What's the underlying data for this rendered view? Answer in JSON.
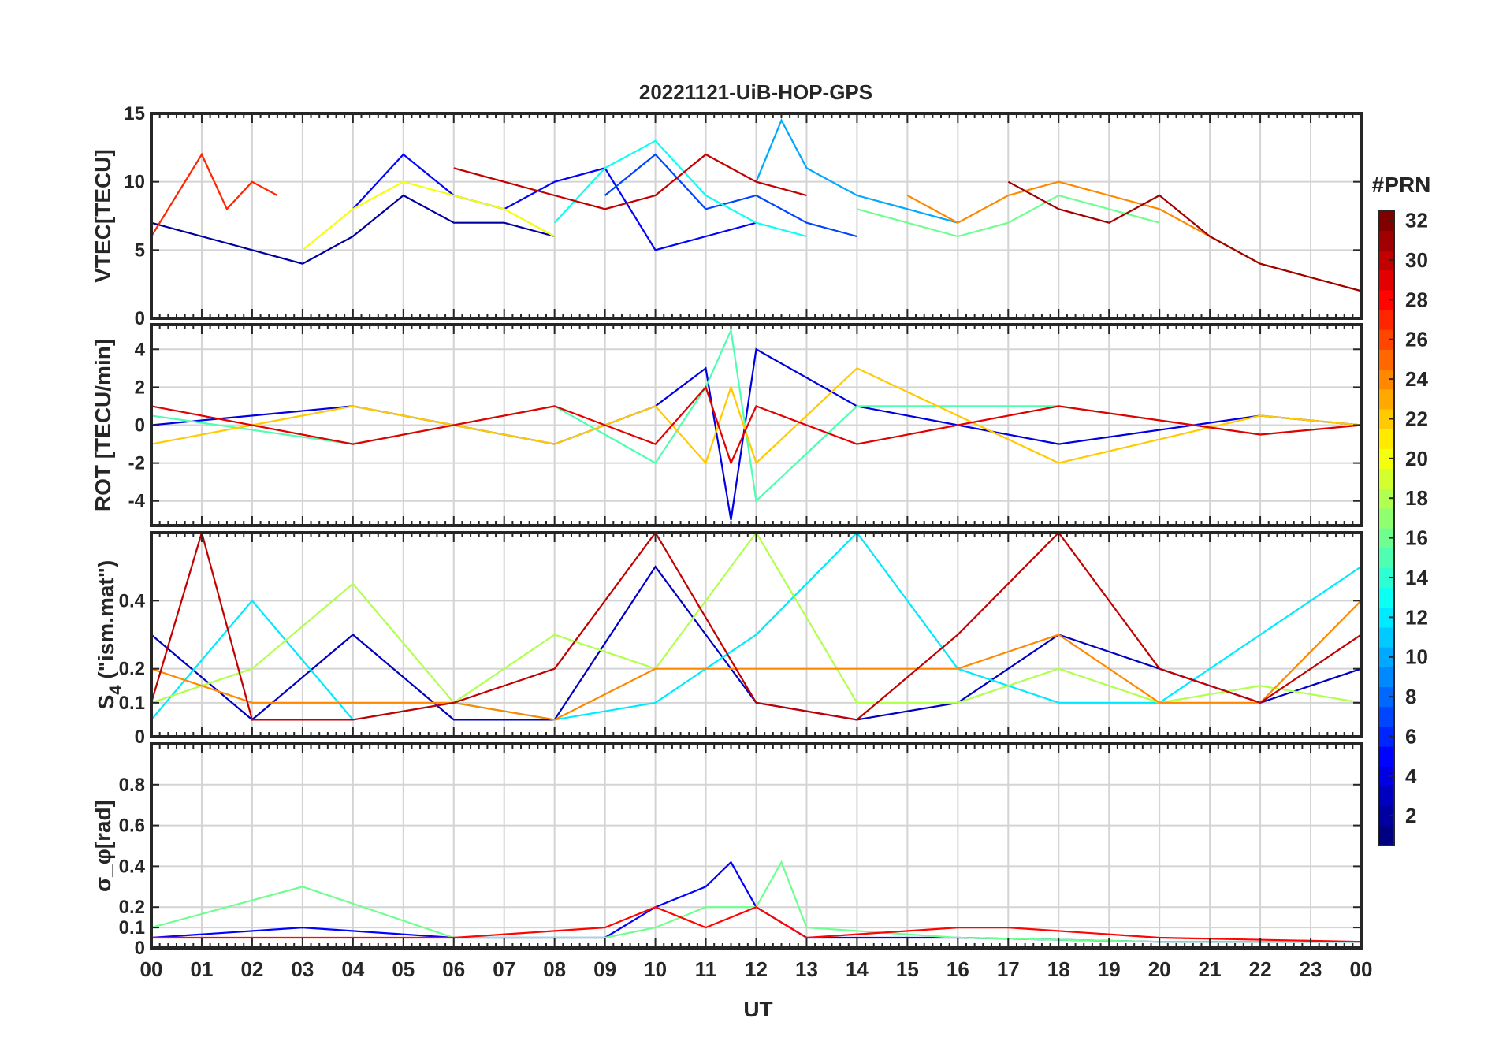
{
  "figure": {
    "title": "20221121-UiB-HOP-GPS",
    "x_axis_label": "UT",
    "x_tick_labels": [
      "00",
      "01",
      "02",
      "03",
      "04",
      "05",
      "06",
      "07",
      "08",
      "09",
      "10",
      "11",
      "12",
      "13",
      "14",
      "15",
      "16",
      "17",
      "18",
      "19",
      "20",
      "21",
      "22",
      "23",
      "00"
    ]
  },
  "colorbar": {
    "title": "#PRN",
    "tick_labels": [
      "2",
      "4",
      "6",
      "8",
      "10",
      "12",
      "14",
      "16",
      "18",
      "20",
      "22",
      "24",
      "26",
      "28",
      "30",
      "32"
    ],
    "range": [
      1,
      32
    ],
    "colormap": "jet"
  },
  "chart_data": [
    {
      "type": "line",
      "panel": "vtec",
      "ylabel": "VTEC[TECU]",
      "ylim": [
        0,
        15
      ],
      "ytick_labels": [
        "0",
        "5",
        "10",
        "15"
      ],
      "xlim_hours": [
        0,
        24
      ],
      "grid": true,
      "series": [
        {
          "prn": 2,
          "x": [
            0,
            1,
            2,
            3,
            4,
            5,
            6,
            7,
            8
          ],
          "y": [
            7,
            6,
            5,
            4,
            6,
            9,
            7,
            7,
            6
          ]
        },
        {
          "prn": 5,
          "x": [
            4,
            5,
            6,
            7,
            8,
            9,
            10,
            11,
            12
          ],
          "y": [
            8,
            12,
            9,
            8,
            10,
            11,
            5,
            6,
            7
          ]
        },
        {
          "prn": 7,
          "x": [
            9,
            10,
            11,
            12,
            13,
            14
          ],
          "y": [
            9,
            12,
            8,
            9,
            7,
            6
          ]
        },
        {
          "prn": 10,
          "x": [
            12,
            12.5,
            13,
            14,
            15,
            16
          ],
          "y": [
            10,
            14.5,
            11,
            9,
            8,
            7
          ]
        },
        {
          "prn": 13,
          "x": [
            8,
            9,
            10,
            11,
            12,
            13
          ],
          "y": [
            7,
            11,
            13,
            9,
            7,
            6
          ]
        },
        {
          "prn": 16,
          "x": [
            14,
            15,
            16,
            17,
            18,
            19,
            20
          ],
          "y": [
            8,
            7,
            6,
            7,
            9,
            8,
            7
          ]
        },
        {
          "prn": 20,
          "x": [
            3,
            4,
            5,
            6,
            7,
            8
          ],
          "y": [
            5,
            8,
            10,
            9,
            8,
            6
          ]
        },
        {
          "prn": 24,
          "x": [
            15,
            16,
            17,
            18,
            19,
            20,
            21,
            22,
            23,
            24
          ],
          "y": [
            9,
            7,
            9,
            10,
            9,
            8,
            6,
            4,
            3,
            2
          ]
        },
        {
          "prn": 27,
          "x": [
            0,
            0.5,
            1,
            1.5,
            2,
            2.5
          ],
          "y": [
            6,
            9,
            12,
            8,
            10,
            9
          ]
        },
        {
          "prn": 30,
          "x": [
            6,
            7,
            8,
            9,
            10,
            11,
            12,
            13
          ],
          "y": [
            11,
            10,
            9,
            8,
            9,
            12,
            10,
            9
          ]
        },
        {
          "prn": 31,
          "x": [
            17,
            18,
            19,
            20,
            21,
            22,
            23,
            24
          ],
          "y": [
            10,
            8,
            7,
            9,
            6,
            4,
            3,
            2
          ]
        }
      ]
    },
    {
      "type": "line",
      "panel": "rot",
      "ylabel": "ROT [TECU/min]",
      "ylim": [
        -5.3,
        5.3
      ],
      "ytick_labels": [
        "-4",
        "-2",
        "0",
        "2",
        "4"
      ],
      "xlim_hours": [
        0,
        24
      ],
      "grid": true,
      "series": [
        {
          "prn": 4,
          "x": [
            0,
            4,
            8,
            10,
            11,
            11.5,
            12,
            14,
            18,
            22,
            24
          ],
          "y": [
            0,
            1,
            -1,
            1,
            3,
            -5,
            4,
            1,
            -1,
            0.5,
            0
          ]
        },
        {
          "prn": 15,
          "x": [
            0,
            4,
            8,
            10,
            11,
            11.5,
            12,
            14,
            18,
            22,
            24
          ],
          "y": [
            0.5,
            -1,
            1,
            -2,
            2,
            5,
            -4,
            1,
            1,
            -0.5,
            0
          ]
        },
        {
          "prn": 22,
          "x": [
            0,
            4,
            8,
            10,
            11,
            11.5,
            12,
            14,
            18,
            22,
            24
          ],
          "y": [
            -1,
            1,
            -1,
            1,
            -2,
            2,
            -2,
            3,
            -2,
            0.5,
            0
          ]
        },
        {
          "prn": 29,
          "x": [
            0,
            4,
            8,
            10,
            11,
            11.5,
            12,
            14,
            18,
            22,
            24
          ],
          "y": [
            1,
            -1,
            1,
            -1,
            2,
            -2,
            1,
            -1,
            1,
            -0.5,
            0
          ]
        }
      ]
    },
    {
      "type": "line",
      "panel": "s4",
      "ylabel_main": "S",
      "ylabel_sub": "4",
      "ylabel_rest": " (\"ism.mat\")",
      "ylim": [
        0,
        0.6
      ],
      "ytick_labels": [
        "0",
        "0.1",
        "0.2",
        "0.4"
      ],
      "xlim_hours": [
        0,
        24
      ],
      "grid": true,
      "series": [
        {
          "prn": 3,
          "x": [
            0,
            2,
            4,
            6,
            8,
            10,
            12,
            14,
            16,
            18,
            20,
            22,
            24
          ],
          "y": [
            0.3,
            0.05,
            0.3,
            0.05,
            0.05,
            0.5,
            0.1,
            0.05,
            0.1,
            0.3,
            0.2,
            0.1,
            0.2
          ]
        },
        {
          "prn": 12,
          "x": [
            0,
            2,
            4,
            6,
            8,
            10,
            12,
            14,
            16,
            18,
            20,
            22,
            24
          ],
          "y": [
            0.05,
            0.4,
            0.05,
            0.1,
            0.05,
            0.1,
            0.3,
            0.6,
            0.2,
            0.1,
            0.1,
            0.3,
            0.5
          ]
        },
        {
          "prn": 18,
          "x": [
            0,
            2,
            4,
            6,
            8,
            10,
            12,
            14,
            16,
            18,
            20,
            22,
            24
          ],
          "y": [
            0.1,
            0.2,
            0.45,
            0.1,
            0.3,
            0.2,
            0.6,
            0.1,
            0.1,
            0.2,
            0.1,
            0.15,
            0.1
          ]
        },
        {
          "prn": 24,
          "x": [
            0,
            2,
            4,
            6,
            8,
            10,
            12,
            14,
            16,
            18,
            20,
            22,
            24
          ],
          "y": [
            0.2,
            0.1,
            0.1,
            0.1,
            0.05,
            0.2,
            0.2,
            0.2,
            0.2,
            0.3,
            0.1,
            0.1,
            0.4
          ]
        },
        {
          "prn": 30,
          "x": [
            0,
            1,
            2,
            4,
            6,
            8,
            10,
            12,
            14,
            16,
            18,
            20,
            22,
            24
          ],
          "y": [
            0.1,
            0.6,
            0.05,
            0.05,
            0.1,
            0.2,
            0.6,
            0.1,
            0.05,
            0.3,
            0.6,
            0.2,
            0.1,
            0.3
          ]
        }
      ]
    },
    {
      "type": "line",
      "panel": "sigma_phi",
      "ylabel": "σ_φ[rad]",
      "ylim": [
        0,
        1
      ],
      "ytick_labels": [
        "0",
        "0.1",
        "0.2",
        "0.4",
        "0.6",
        "0.8"
      ],
      "xlim_hours": [
        0,
        24
      ],
      "grid": true,
      "series": [
        {
          "prn": 5,
          "x": [
            0,
            3,
            6,
            9,
            10,
            11,
            11.5,
            12,
            13,
            16,
            20,
            24
          ],
          "y": [
            0.05,
            0.1,
            0.05,
            0.05,
            0.2,
            0.3,
            0.42,
            0.2,
            0.05,
            0.05,
            0.03,
            0.03
          ]
        },
        {
          "prn": 16,
          "x": [
            0,
            3,
            6,
            9,
            10,
            11,
            12,
            12.5,
            13,
            16,
            20,
            24
          ],
          "y": [
            0.1,
            0.3,
            0.05,
            0.05,
            0.1,
            0.2,
            0.2,
            0.42,
            0.1,
            0.05,
            0.03,
            0.03
          ]
        },
        {
          "prn": 28,
          "x": [
            0,
            3,
            6,
            9,
            10,
            11,
            12,
            13,
            16,
            17,
            20,
            24
          ],
          "y": [
            0.05,
            0.05,
            0.05,
            0.1,
            0.2,
            0.1,
            0.2,
            0.05,
            0.1,
            0.1,
            0.05,
            0.03
          ]
        }
      ]
    }
  ]
}
